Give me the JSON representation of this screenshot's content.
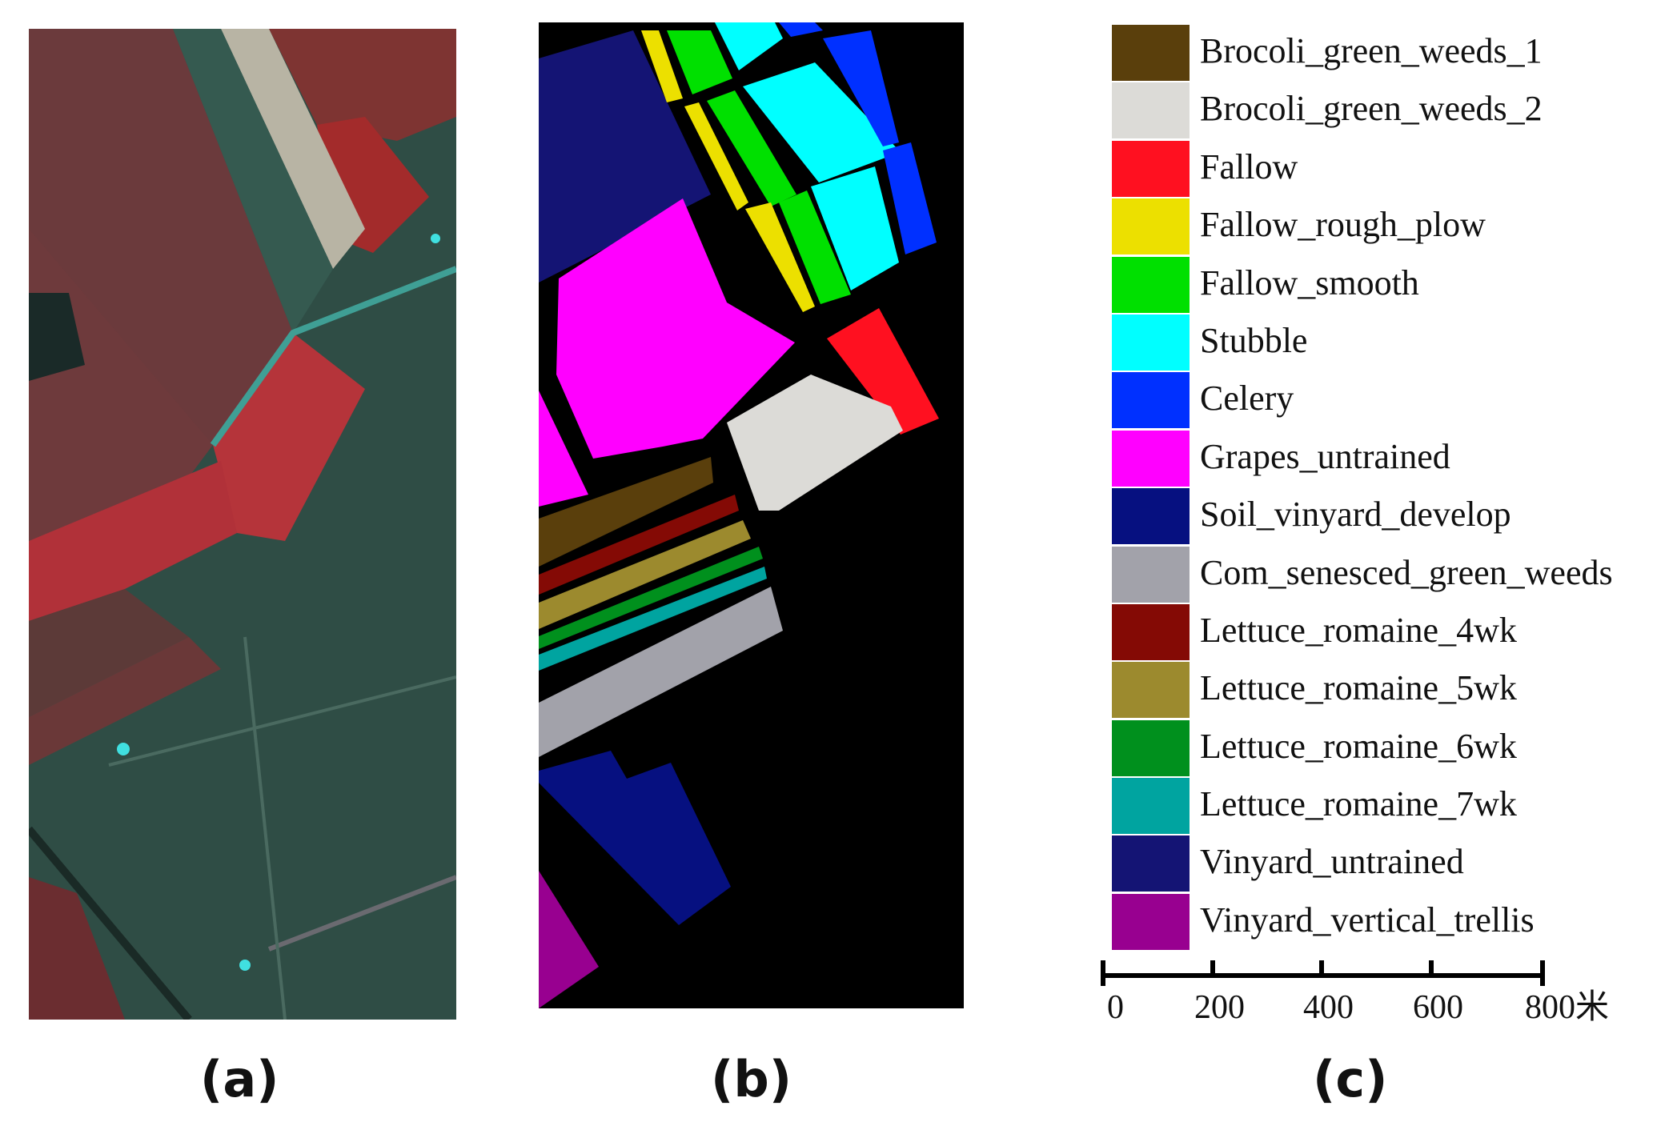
{
  "labels": {
    "a": "(a)",
    "b": "(b)",
    "c": "(c)"
  },
  "legend": [
    {
      "name": "Brocoli_green_weeds_1",
      "color": "#5a3f0c"
    },
    {
      "name": "Brocoli_green_weeds_2",
      "color": "#dcdbd7"
    },
    {
      "name": "Fallow",
      "color": "#ff1020"
    },
    {
      "name": "Fallow_rough_plow",
      "color": "#ece000"
    },
    {
      "name": "Fallow_smooth",
      "color": "#00e000"
    },
    {
      "name": "Stubble",
      "color": "#00ffff"
    },
    {
      "name": "Celery",
      "color": "#0030ff"
    },
    {
      "name": "Grapes_untrained",
      "color": "#ff00ff"
    },
    {
      "name": "Soil_vinyard_develop",
      "color": "#061080"
    },
    {
      "name": "Com_senesced_green_weeds",
      "color": "#a2a2aa"
    },
    {
      "name": "Lettuce_romaine_4wk",
      "color": "#840a05"
    },
    {
      "name": "Lettuce_romaine_5wk",
      "color": "#9c8a2e"
    },
    {
      "name": "Lettuce_romaine_6wk",
      "color": "#00901d"
    },
    {
      "name": "Lettuce_romaine_7wk",
      "color": "#00a4a0"
    },
    {
      "name": "Vinyard_untrained",
      "color": "#141474"
    },
    {
      "name": "Vinyard_vertical_trellis",
      "color": "#980090"
    }
  ],
  "scale": {
    "ticks": [
      "0",
      "200",
      "400",
      "600",
      "800米"
    ]
  }
}
